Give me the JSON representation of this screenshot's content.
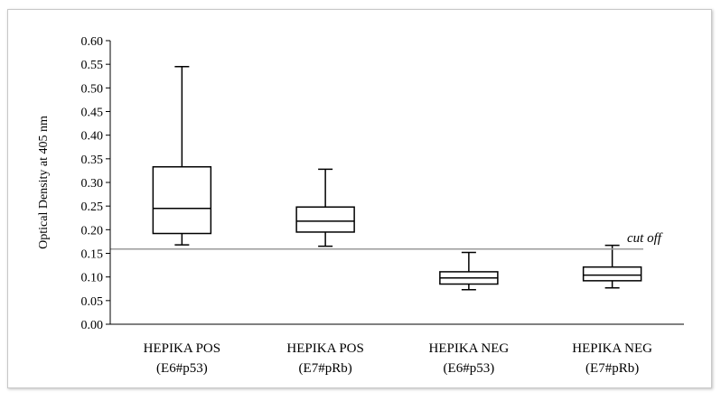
{
  "chart_data": {
    "type": "box",
    "ylabel": "Optical Density at 405 nm",
    "xlabel": "",
    "ylim": [
      0,
      0.6
    ],
    "yticks": [
      "0.00",
      "0.05",
      "0.10",
      "0.15",
      "0.20",
      "0.25",
      "0.30",
      "0.35",
      "0.40",
      "0.45",
      "0.50",
      "0.55",
      "0.60"
    ],
    "grid": false,
    "categories": [
      {
        "line1": "HEPIKA POS",
        "line2": "(E6#p53)"
      },
      {
        "line1": "HEPIKA POS",
        "line2": "(E7#pRb)"
      },
      {
        "line1": "HEPIKA NEG",
        "line2": "(E6#p53)"
      },
      {
        "line1": "HEPIKA NEG",
        "line2": "(E7#pRb)"
      }
    ],
    "boxes": [
      {
        "min": 0.168,
        "q1": 0.192,
        "median": 0.245,
        "q3": 0.333,
        "max": 0.545
      },
      {
        "min": 0.165,
        "q1": 0.195,
        "median": 0.218,
        "q3": 0.248,
        "max": 0.328
      },
      {
        "min": 0.073,
        "q1": 0.085,
        "median": 0.098,
        "q3": 0.111,
        "max": 0.152
      },
      {
        "min": 0.077,
        "q1": 0.092,
        "median": 0.104,
        "q3": 0.121,
        "max": 0.167
      }
    ],
    "cutoff": {
      "value": 0.159,
      "label": "cut off"
    }
  }
}
